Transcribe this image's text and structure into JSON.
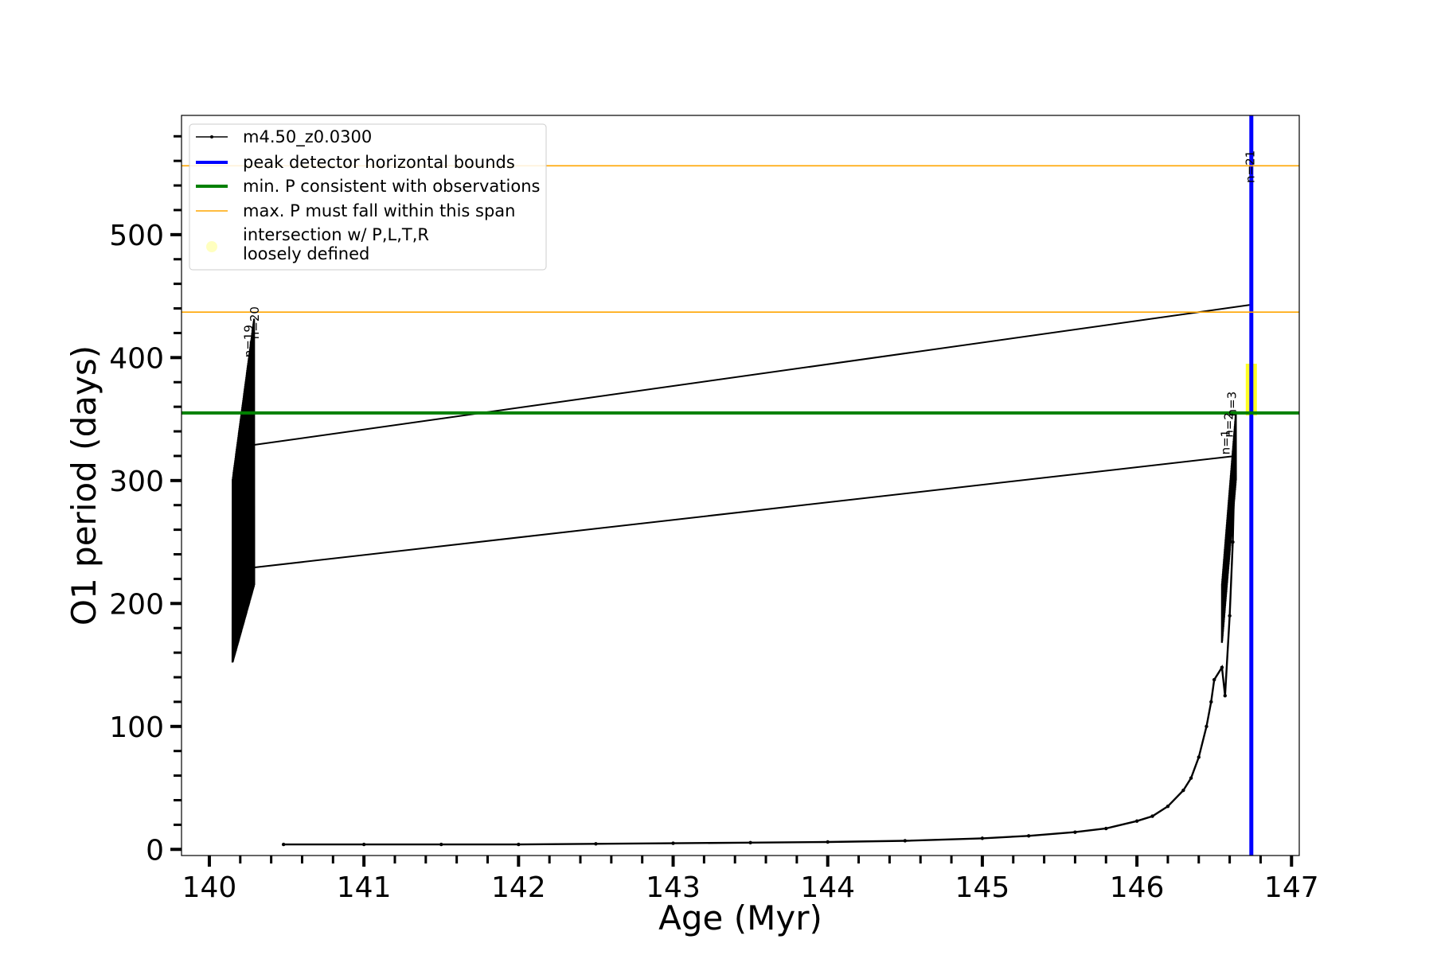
{
  "chart_data": {
    "type": "line",
    "title": "",
    "xlabel": "Age (Myr)",
    "ylabel": "O1 period (days)",
    "xlim": [
      139.82,
      147.05
    ],
    "ylim": [
      -5,
      597
    ],
    "x_ticks": [
      140,
      141,
      142,
      143,
      144,
      145,
      146,
      147
    ],
    "x_tick_labels": [
      "140",
      "141",
      "142",
      "143",
      "144",
      "145",
      "146",
      "147"
    ],
    "y_ticks": [
      0,
      100,
      200,
      300,
      400,
      500
    ],
    "y_tick_labels": [
      "0",
      "100",
      "200",
      "300",
      "400",
      "500"
    ],
    "minor_x_step": 0.2,
    "minor_y_step": 20,
    "grid": false,
    "legend_position": "upper-left",
    "legend": [
      {
        "label": "m4.50_z0.0300",
        "color": "#000000",
        "style": "line-with-dots"
      },
      {
        "label": "peak detector horizontal bounds",
        "color": "#0000ff",
        "style": "thick-line"
      },
      {
        "label": "min. P consistent with observations",
        "color": "#008000",
        "style": "thick-line"
      },
      {
        "label": "max. P must fall within this span",
        "color": "#ffa500",
        "style": "thin-line"
      },
      {
        "label_lines": [
          "intersection w/ P,L,T,R",
          "loosely defined"
        ],
        "color": "#ffff00",
        "style": "marker"
      }
    ],
    "series": [
      {
        "name": "m4.50_z0.0300",
        "color": "#000000",
        "x": [
          140.48,
          141.0,
          141.5,
          142.0,
          142.5,
          143.0,
          143.5,
          144.0,
          144.5,
          145.0,
          145.3,
          145.6,
          145.8,
          146.0,
          146.1,
          146.2,
          146.3,
          146.35,
          146.4,
          146.45,
          146.48,
          146.5,
          146.55,
          146.57,
          146.6,
          146.62,
          146.64
        ],
        "y": [
          4,
          4,
          4,
          4,
          4.5,
          5,
          5.5,
          6,
          7,
          9,
          11,
          14,
          17,
          23,
          27,
          35,
          48,
          58,
          75,
          100,
          120,
          138,
          148,
          125,
          190,
          250,
          355
        ],
        "oscillation_bands": [
          {
            "x_range": [
              140.15,
              140.29
            ],
            "y_min_start": 152,
            "y_min_end": 215,
            "y_max_start": 300,
            "y_max_end": 432
          },
          {
            "x_range": [
              146.55,
              146.64
            ],
            "y_min_start": 168,
            "y_min_end": 300,
            "y_max_start": 215,
            "y_max_end": 355
          }
        ],
        "connectors": [
          {
            "x": [
              140.27,
              146.64
            ],
            "y": [
              229,
              320
            ]
          },
          {
            "x": [
              140.29,
              146.74
            ],
            "y": [
              329,
              443
            ]
          }
        ]
      }
    ],
    "reference_lines": [
      {
        "name": "peak detector horizontal bounds",
        "orientation": "vertical",
        "x": 146.74,
        "color": "#0000ff"
      },
      {
        "name": "min. P consistent with observations",
        "orientation": "horizontal",
        "y": 355,
        "color": "#008000"
      },
      {
        "name": "max. P lower bound",
        "orientation": "horizontal",
        "y": 437,
        "color": "#ffa500"
      },
      {
        "name": "max. P upper bound",
        "orientation": "horizontal",
        "y": 556,
        "color": "#ffa500"
      }
    ],
    "highlight": {
      "x": 146.74,
      "y_range": [
        353,
        395
      ],
      "color": "#ffff00"
    },
    "annotations": [
      {
        "text": "n=21",
        "x": 146.76,
        "y": 542
      },
      {
        "text": "n=1",
        "x": 146.6,
        "y": 321
      },
      {
        "text": "n=2",
        "x": 146.62,
        "y": 335
      },
      {
        "text": "n=3",
        "x": 146.64,
        "y": 352
      },
      {
        "text": "n=19",
        "x": 140.28,
        "y": 400
      },
      {
        "text": "n=20",
        "x": 140.32,
        "y": 415
      }
    ]
  }
}
